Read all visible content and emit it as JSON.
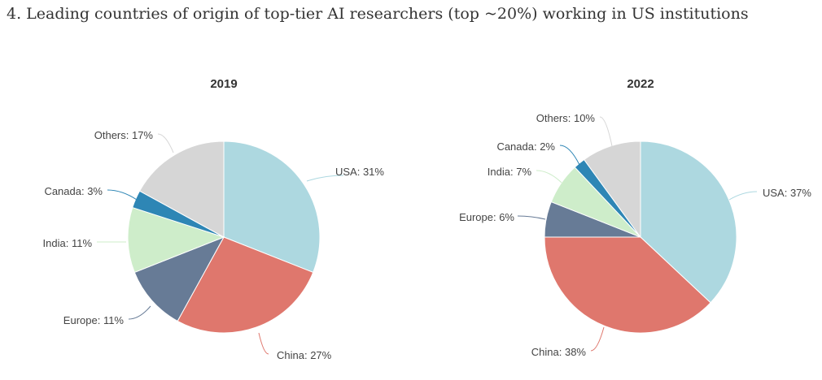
{
  "page_title": "4. Leading countries of origin of top-tier AI researchers (top ~20%) working in US institutions",
  "chart_data": [
    {
      "type": "pie",
      "title": "2019",
      "slices": [
        {
          "label": "USA: 31%",
          "name": "USA",
          "value": 31,
          "color": "#add8e0"
        },
        {
          "label": "China: 27%",
          "name": "China",
          "value": 27,
          "color": "#df776d"
        },
        {
          "label": "Europe: 11%",
          "name": "Europe",
          "value": 11,
          "color": "#677b96"
        },
        {
          "label": "India: 11%",
          "name": "India",
          "value": 11,
          "color": "#ceedca"
        },
        {
          "label": "Canada: 3%",
          "name": "Canada",
          "value": 3,
          "color": "#2e86b5"
        },
        {
          "label": "Others: 17%",
          "name": "Others",
          "value": 17,
          "color": "#d6d6d6"
        }
      ]
    },
    {
      "type": "pie",
      "title": "2022",
      "slices": [
        {
          "label": "USA: 37%",
          "name": "USA",
          "value": 37,
          "color": "#add8e0"
        },
        {
          "label": "China: 38%",
          "name": "China",
          "value": 38,
          "color": "#df776d"
        },
        {
          "label": "Europe: 6%",
          "name": "Europe",
          "value": 6,
          "color": "#677b96"
        },
        {
          "label": "India: 7%",
          "name": "India",
          "value": 7,
          "color": "#ceedca"
        },
        {
          "label": "Canada: 2%",
          "name": "Canada",
          "value": 2,
          "color": "#2e86b5"
        },
        {
          "label": "Others: 10%",
          "name": "Others",
          "value": 10,
          "color": "#d6d6d6"
        }
      ]
    }
  ]
}
